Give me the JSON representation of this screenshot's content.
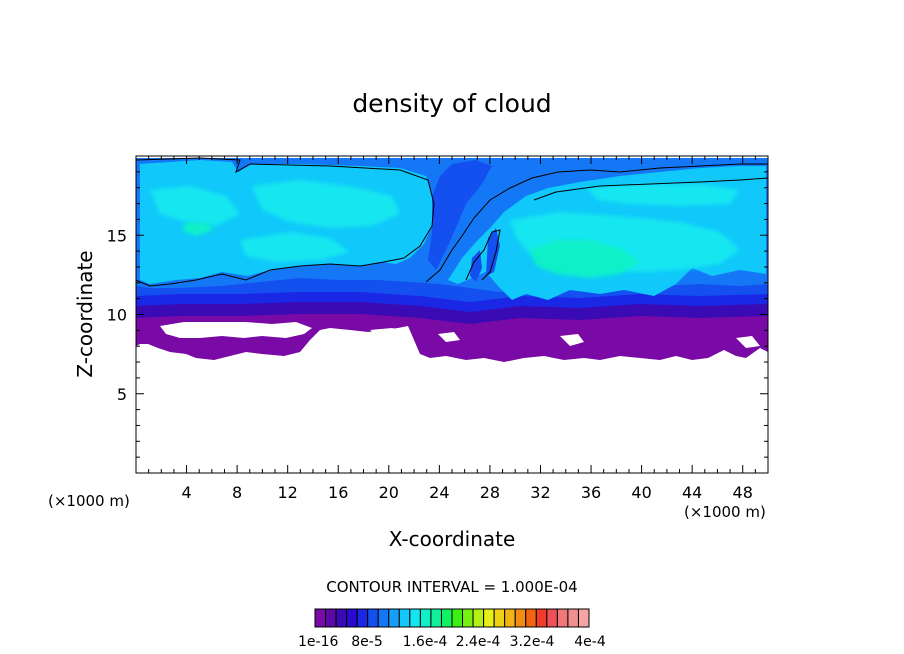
{
  "chart_data": {
    "type": "heatmap",
    "title": "density of cloud",
    "xlabel": "X-coordinate",
    "ylabel": "Z-coordinate",
    "x_unit": "(×1000 m)",
    "y_unit": "(×1000 m)",
    "xlim": [
      0,
      50
    ],
    "ylim": [
      0,
      20
    ],
    "x_ticks": [
      "4",
      "8",
      "12",
      "16",
      "20",
      "24",
      "28",
      "32",
      "36",
      "40",
      "44",
      "48"
    ],
    "y_ticks": [
      "5",
      "10",
      "15"
    ],
    "contour_interval_text": "CONTOUR INTERVAL = 1.000E-04",
    "colorbar": {
      "labels": [
        "1e-16",
        "8e-5",
        "1.6e-4",
        "2.4e-4",
        "3.2e-4",
        "4e-4"
      ],
      "colors": [
        "#7a0aa6",
        "#5a0aa6",
        "#3a0ab4",
        "#2a0ad0",
        "#1a28e6",
        "#1450f0",
        "#1478f6",
        "#14a0fa",
        "#10c8fa",
        "#14e6f0",
        "#10f0c8",
        "#10f09a",
        "#14f064",
        "#3cf014",
        "#78f014",
        "#b4f014",
        "#e6f014",
        "#f0d214",
        "#f0b414",
        "#f08c14",
        "#f06414",
        "#f03c28",
        "#f0505a",
        "#f07878",
        "#f09090",
        "#f4a4a4"
      ]
    },
    "layers": {
      "cloud_top_z": 19.6,
      "base_z_max": 10.3,
      "patch_low_z": 7.3
    }
  }
}
